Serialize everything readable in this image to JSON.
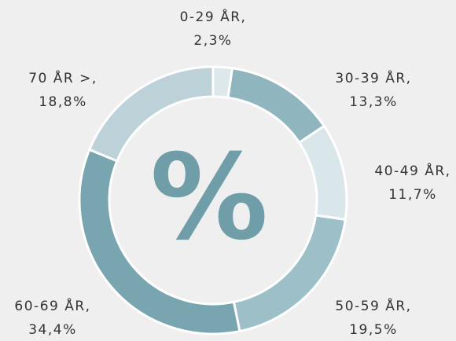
{
  "chart_data": {
    "type": "donut",
    "center_label": "%",
    "categories": [
      "0-29 ÅR,",
      "30-39 ÅR,",
      "40-49 ÅR,",
      "50-59 ÅR,",
      "60-69 ÅR,",
      "70 ÅR >,"
    ],
    "values": [
      2.3,
      13.3,
      11.7,
      19.5,
      34.4,
      18.8
    ],
    "value_labels": [
      "2,3%",
      "13,3%",
      "11,7%",
      "19,5%",
      "34,4%",
      "18,8%"
    ],
    "colors": [
      "#dde8ec",
      "#8fb5bf",
      "#d9e6ea",
      "#9dbfc8",
      "#78a5b0",
      "#bcd1d8"
    ]
  }
}
